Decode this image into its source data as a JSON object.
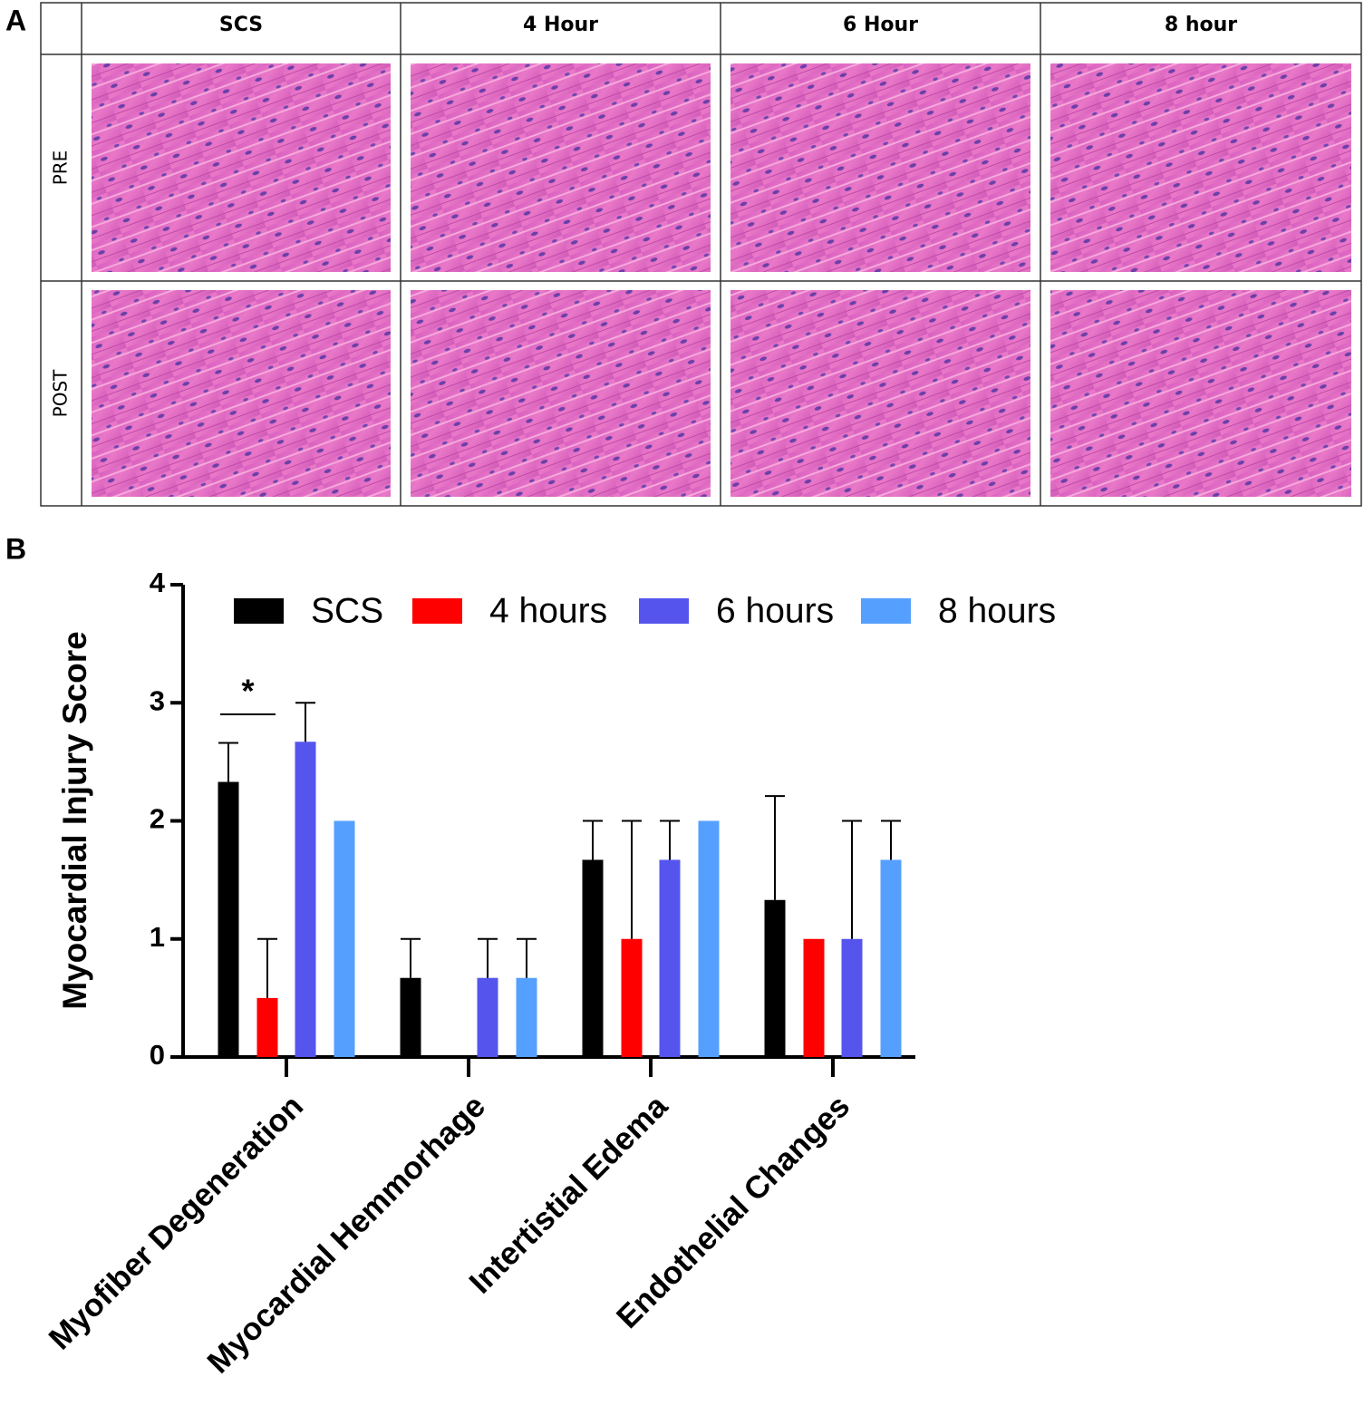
{
  "panel_labels": [
    "A",
    "B"
  ],
  "table": {
    "columns": [
      "SCS",
      "4 Hour",
      "6 Hour",
      "8 hour"
    ],
    "rows": [
      "PRE",
      "POST"
    ]
  },
  "chart_data": {
    "type": "bar",
    "y_label": "Myocardial Injury Score",
    "categories": [
      "Myofiber Degeneration",
      "Myocardial Hemmorhage",
      "Intertistial Edema",
      "Endothelial Changes"
    ],
    "series": [
      {
        "name": "SCS",
        "color": "#000000",
        "values": [
          2.33,
          0.67,
          1.67,
          1.33
        ],
        "errors": [
          0.33,
          0.33,
          0.33,
          0.88
        ]
      },
      {
        "name": "4 hours",
        "color": "#ff0000",
        "values": [
          0.5,
          0,
          1,
          1
        ],
        "errors": [
          0.5,
          0,
          1,
          0
        ]
      },
      {
        "name": "6 hours",
        "color": "#5555ee",
        "values": [
          2.67,
          0.67,
          1.67,
          1
        ],
        "errors": [
          0.33,
          0.33,
          0.33,
          1
        ]
      },
      {
        "name": "8 hours",
        "color": "#55a0ff",
        "values": [
          2,
          0.67,
          2,
          1.67
        ],
        "errors": [
          0,
          0.33,
          0,
          0.33
        ]
      }
    ],
    "annotations": [
      "*"
    ],
    "ylim": [
      0,
      4
    ],
    "yticks": [
      0,
      1,
      2,
      3,
      4
    ]
  }
}
